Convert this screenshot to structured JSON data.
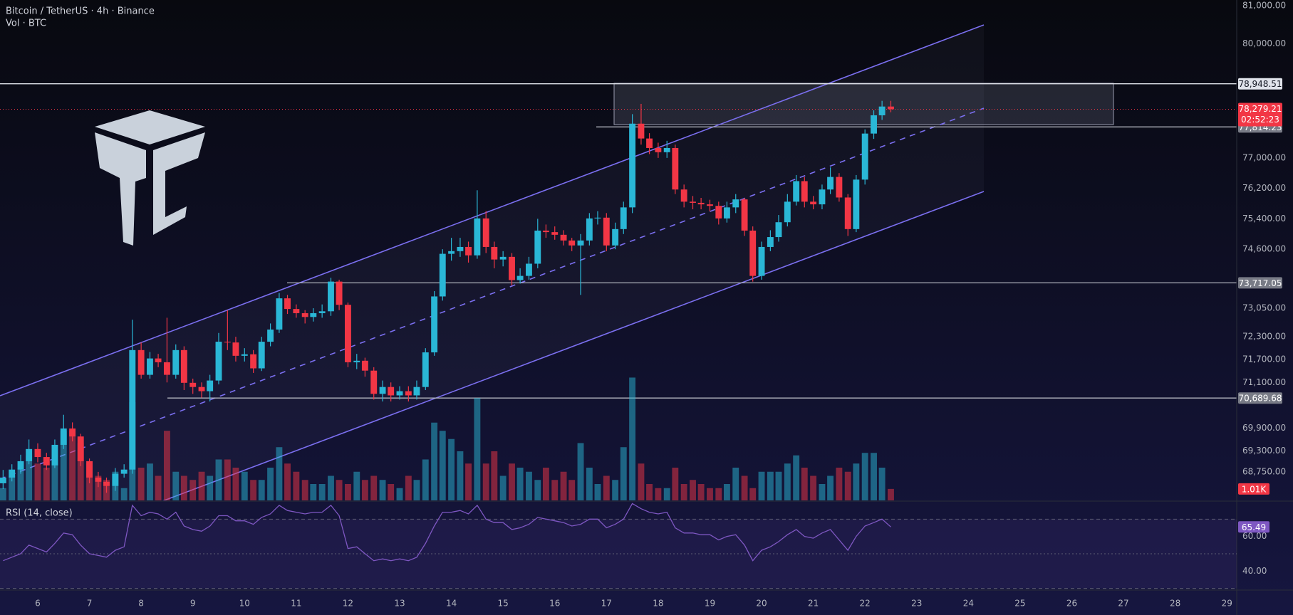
{
  "chart_data": {
    "type": "candlestick",
    "title": "Bitcoin / TetherUS · 4h · Binance",
    "x": [
      5.33,
      5.5,
      5.67,
      5.83,
      6,
      6.17,
      6.33,
      6.5,
      6.67,
      6.83,
      7,
      7.17,
      7.33,
      7.5,
      7.67,
      7.83,
      8,
      8.17,
      8.33,
      8.5,
      8.67,
      8.83,
      9,
      9.17,
      9.33,
      9.5,
      9.67,
      9.83,
      10,
      10.17,
      10.33,
      10.5,
      10.67,
      10.83,
      11,
      11.17,
      11.33,
      11.5,
      11.67,
      11.83,
      12,
      12.17,
      12.33,
      12.5,
      12.67,
      12.83,
      13,
      13.17,
      13.33,
      13.5,
      13.67,
      13.83,
      14,
      14.17,
      14.33,
      14.5,
      14.67,
      14.83,
      15,
      15.17,
      15.33,
      15.5,
      15.67,
      15.83,
      16,
      16.17,
      16.33,
      16.5,
      16.67,
      16.83,
      17,
      17.17,
      17.33,
      17.5,
      17.67,
      17.83,
      18,
      18.17,
      18.33,
      18.5,
      18.67,
      18.83,
      19,
      19.17,
      19.33,
      19.5,
      19.67,
      19.83,
      20,
      20.17,
      20.33,
      20.5,
      20.67,
      20.83,
      21,
      21.17,
      21.33,
      21.5,
      21.67,
      21.83,
      22,
      22.17,
      22.33,
      22.5
    ],
    "open": [
      68450,
      68600,
      68810,
      69030,
      69350,
      69140,
      68920,
      69460,
      69890,
      69680,
      69030,
      68600,
      68490,
      68380,
      68700,
      68810,
      71950,
      71300,
      71730,
      71630,
      71300,
      71950,
      71090,
      70980,
      70870,
      71150,
      72170,
      72150,
      71800,
      71840,
      71470,
      72170,
      72490,
      73310,
      73030,
      72920,
      72820,
      72920,
      72970,
      73750,
      73140,
      71630,
      71670,
      71410,
      70800,
      70980,
      70760,
      70870,
      70760,
      70980,
      71890,
      73360,
      74480,
      74550,
      74660,
      74440,
      75410,
      74660,
      74330,
      74400,
      73790,
      73900,
      74220,
      75090,
      75050,
      74980,
      74830,
      74700,
      74830,
      75410,
      75430,
      74700,
      75130,
      75700,
      77900,
      77510,
      77260,
      77150,
      77260,
      76170,
      75850,
      75820,
      75780,
      75740,
      75410,
      75700,
      75910,
      75090,
      73900,
      74660,
      74920,
      75310,
      75850,
      76390,
      75850,
      75780,
      76170,
      76500,
      75960,
      75130,
      76430,
      77640,
      78120,
      78350
    ],
    "high": [
      68800,
      68950,
      69200,
      69600,
      69500,
      69250,
      69600,
      70250,
      70050,
      69750,
      69100,
      68750,
      68600,
      68850,
      68950,
      72750,
      72150,
      71900,
      71850,
      72800,
      72100,
      72050,
      71200,
      71100,
      71300,
      72400,
      73000,
      72300,
      72000,
      71950,
      72300,
      72650,
      73450,
      73400,
      73150,
      73000,
      73050,
      73150,
      73850,
      73800,
      73200,
      71850,
      71750,
      71500,
      71150,
      71100,
      71000,
      71000,
      71150,
      72000,
      73500,
      74600,
      74900,
      74900,
      74800,
      76150,
      75600,
      74800,
      74550,
      74500,
      74100,
      74400,
      75400,
      75250,
      75200,
      75100,
      74900,
      75000,
      75550,
      75600,
      75550,
      75300,
      75850,
      78150,
      78420,
      77650,
      77400,
      77450,
      77350,
      76300,
      76000,
      75950,
      75900,
      75850,
      75850,
      76050,
      75950,
      75200,
      74800,
      75100,
      75500,
      76050,
      76550,
      76500,
      76000,
      76300,
      76750,
      76600,
      76050,
      76550,
      77750,
      78250,
      78500,
      78500
    ],
    "low": [
      68300,
      68500,
      68700,
      68950,
      69000,
      68800,
      68850,
      69350,
      69550,
      68900,
      68450,
      68350,
      68200,
      68250,
      68600,
      68700,
      71200,
      71200,
      71500,
      71100,
      71200,
      70900,
      70800,
      70700,
      70600,
      71050,
      71950,
      71650,
      71650,
      71350,
      71400,
      72050,
      72400,
      72900,
      72800,
      72650,
      72700,
      72800,
      72850,
      73000,
      71500,
      71450,
      71250,
      70650,
      70600,
      70600,
      70650,
      70600,
      70650,
      70900,
      71800,
      73250,
      74300,
      74400,
      74250,
      74350,
      74500,
      74100,
      74150,
      73650,
      73700,
      73800,
      74100,
      74900,
      74850,
      74700,
      74550,
      73400,
      74700,
      75250,
      74550,
      74600,
      75000,
      75550,
      77350,
      77100,
      77000,
      77000,
      76050,
      75700,
      75650,
      75650,
      75600,
      75250,
      75300,
      75550,
      74950,
      73750,
      73800,
      74550,
      74800,
      75200,
      75750,
      75700,
      75650,
      75650,
      76050,
      75850,
      74950,
      75050,
      76300,
      77500,
      78000,
      78200
    ],
    "close": [
      68600,
      68810,
      69030,
      69350,
      69140,
      68920,
      69460,
      69890,
      69680,
      69030,
      68600,
      68490,
      68380,
      68700,
      68810,
      71950,
      71300,
      71730,
      71630,
      71300,
      71950,
      71090,
      70980,
      70870,
      71150,
      72170,
      72150,
      71800,
      71840,
      71470,
      72170,
      72490,
      73310,
      73030,
      72920,
      72820,
      72920,
      72970,
      73750,
      73140,
      71630,
      71670,
      71410,
      70800,
      70980,
      70760,
      70870,
      70760,
      70980,
      71890,
      73360,
      74480,
      74550,
      74660,
      74440,
      75410,
      74660,
      74330,
      74400,
      73790,
      73900,
      74220,
      75090,
      75050,
      74980,
      74830,
      74700,
      74830,
      75410,
      75430,
      74700,
      75130,
      75700,
      77900,
      77510,
      77260,
      77150,
      77260,
      76170,
      75850,
      75820,
      75780,
      75740,
      75410,
      75700,
      75910,
      75090,
      73900,
      74660,
      74920,
      75310,
      75850,
      76390,
      75850,
      75780,
      76170,
      76500,
      75960,
      75130,
      76430,
      77640,
      78120,
      78350,
      78279.21
    ],
    "colors": {
      "up": "#2ab7d6",
      "down": "#f23645"
    },
    "xlim": [
      5.27,
      29.19
    ],
    "xticks": [
      6,
      7,
      8,
      9,
      10,
      11,
      12,
      13,
      14,
      15,
      16,
      17,
      18,
      19,
      20,
      21,
      22,
      23,
      24,
      25,
      26,
      27,
      28,
      29
    ],
    "ylim": [
      68000,
      81150
    ],
    "yticks": [
      {
        "value": 81000,
        "label": "81,000.00"
      },
      {
        "value": 80000,
        "label": "80,000.00"
      },
      {
        "value": 77000,
        "label": "77,000.00"
      },
      {
        "value": 76200,
        "label": "76,200.00"
      },
      {
        "value": 75400,
        "label": "75,400.00"
      },
      {
        "value": 74600,
        "label": "74,600.00"
      },
      {
        "value": 73050,
        "label": "73,050.00"
      },
      {
        "value": 72300,
        "label": "72,300.00"
      },
      {
        "value": 71700,
        "label": "71,700.00"
      },
      {
        "value": 71100,
        "label": "71,100.00"
      },
      {
        "value": 69900,
        "label": "69,900.00"
      },
      {
        "value": 69300,
        "label": "69,300.00"
      },
      {
        "value": 68750,
        "label": "68,750.00"
      }
    ],
    "levels": [
      {
        "value": 78948.51,
        "label": "78,948.51"
      },
      {
        "value": 77814.23,
        "label": "77,814.23"
      },
      {
        "value": 73717.05,
        "label": "73,717.05"
      },
      {
        "value": 70689.68,
        "label": "70,689.68"
      }
    ],
    "last_price": {
      "value": 78279.21,
      "label": "78,279.21"
    },
    "countdown": "02:52:23",
    "volume": {
      "title": "Vol · BTC",
      "ylim": [
        0,
        44000
      ],
      "last_label": "1.01K",
      "values": [
        1080,
        2160,
        2880,
        3960,
        3240,
        2880,
        3600,
        6120,
        6120,
        5040,
        3240,
        2160,
        1800,
        2520,
        1080,
        8640,
        2880,
        3240,
        2160,
        6120,
        2520,
        2160,
        1800,
        2520,
        2160,
        3600,
        3600,
        2880,
        2520,
        1800,
        1800,
        2880,
        4680,
        3240,
        2520,
        1800,
        1440,
        1440,
        2160,
        1800,
        1440,
        2520,
        1800,
        2160,
        1800,
        1440,
        1080,
        2160,
        1800,
        3600,
        6840,
        6120,
        5400,
        4320,
        3240,
        9000,
        3240,
        4320,
        2160,
        3240,
        2880,
        2520,
        1800,
        2880,
        1800,
        2520,
        1800,
        5040,
        2880,
        1440,
        2160,
        1800,
        4680,
        10800,
        3240,
        1440,
        1080,
        1080,
        2880,
        1440,
        1800,
        1440,
        1080,
        1080,
        1440,
        2880,
        2160,
        1080,
        2520,
        2520,
        2520,
        3240,
        3960,
        2880,
        2160,
        1440,
        2160,
        2880,
        2520,
        3240,
        4180,
        4180,
        2880,
        1010
      ]
    },
    "rsi": {
      "title": "RSI (14, close)",
      "ylim": [
        29,
        80
      ],
      "bands": [
        70,
        50,
        30
      ],
      "color": "#7e57c2",
      "yticks": [
        {
          "value": 60,
          "label": "60.00"
        },
        {
          "value": 40,
          "label": "40.00"
        }
      ],
      "values": [
        46,
        48,
        50,
        55,
        53,
        51,
        56,
        62,
        61,
        55,
        50,
        49,
        48,
        52,
        54,
        78,
        72,
        74,
        73,
        70,
        74,
        66,
        64,
        63,
        66,
        72,
        72,
        69,
        69,
        67,
        71,
        73,
        78,
        75,
        74,
        73,
        74,
        74,
        78,
        72,
        53,
        54,
        50,
        46,
        47,
        46,
        47,
        46,
        48,
        56,
        66,
        74,
        74,
        75,
        73,
        78,
        70,
        68,
        68,
        64,
        65,
        67,
        71,
        70,
        69,
        68,
        66,
        67,
        70,
        70,
        65,
        67,
        70,
        79,
        76,
        74,
        73,
        74,
        65,
        62,
        62,
        61,
        61,
        58,
        60,
        61,
        55,
        46,
        52,
        54,
        57,
        61,
        64,
        60,
        59,
        62,
        64,
        58,
        52,
        60,
        66,
        68,
        70,
        65.49
      ]
    }
  }
}
